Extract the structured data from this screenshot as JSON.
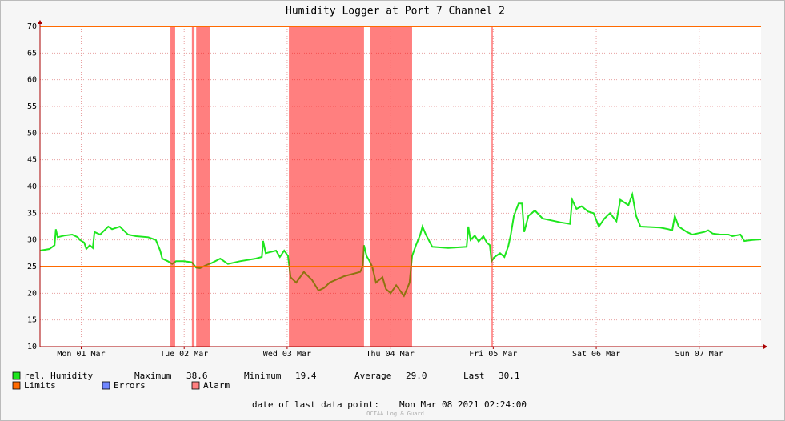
{
  "chart_data": {
    "type": "line",
    "title": "Humidity Logger at Port 7 Channel 2",
    "xlim": [
      2.4,
      170.4
    ],
    "xticks": [
      {
        "value": 12,
        "label": "Mon 01 Mar"
      },
      {
        "value": 36,
        "label": "Tue 02 Mar"
      },
      {
        "value": 60,
        "label": "Wed 03 Mar"
      },
      {
        "value": 84,
        "label": "Thu 04 Mar"
      },
      {
        "value": 108,
        "label": "Fri 05 Mar"
      },
      {
        "value": 132,
        "label": "Sat 06 Mar"
      },
      {
        "value": 156,
        "label": "Sun 07 Mar"
      }
    ],
    "ylim": [
      10,
      70
    ],
    "yticks": [
      10,
      15,
      20,
      25,
      30,
      35,
      40,
      45,
      50,
      55,
      60,
      65,
      70
    ],
    "grid": true,
    "series": [
      {
        "name": "rel. Humidity",
        "color": "#1ee61e",
        "x": [
          2.4,
          4.6,
          5.8,
          6.1,
          6.5,
          8.0,
          9.9,
          11.2,
          11.7,
          12.7,
          13.2,
          14.0,
          14.7,
          15.1,
          16.4,
          18.3,
          19.2,
          21.0,
          22.9,
          24.8,
          27.6,
          29.4,
          30.4,
          30.9,
          32.2,
          33.2,
          34.1,
          36.0,
          37.8,
          38.8,
          39.7,
          41.2,
          42.5,
          44.4,
          46.2,
          49.0,
          52.7,
          54.1,
          54.4,
          55.0,
          57.4,
          58.3,
          59.3,
          60.2,
          60.8,
          62.1,
          63.9,
          65.8,
          67.3,
          68.6,
          69.9,
          73.3,
          77.0,
          77.6,
          77.9,
          78.5,
          79.2,
          79.8,
          80.7,
          82.2,
          83.0,
          84.1,
          85.4,
          87.2,
          88.0,
          88.5,
          89.1,
          90.0,
          91.0,
          91.5,
          92.3,
          93.8,
          97.5,
          101.8,
          102.2,
          102.7,
          103.7,
          104.6,
          105.7,
          106.5,
          107.2,
          107.6,
          108.3,
          109.6,
          110.6,
          111.5,
          112.1,
          112.8,
          113.9,
          114.7,
          115.2,
          116.2,
          117.7,
          119.5,
          123.6,
          125.9,
          126.4,
          127.4,
          128.6,
          130.1,
          131.4,
          132.6,
          133.9,
          135.2,
          136.7,
          137.6,
          139.5,
          140.4,
          141.3,
          142.3,
          146.9,
          148.8,
          149.7,
          150.3,
          151.2,
          153.1,
          154.4,
          157.2,
          158.1,
          159.1,
          160.9,
          162.8,
          163.7,
          165.6,
          166.5,
          168.4,
          170.4
        ],
        "values": [
          28,
          28.3,
          29,
          32,
          30.5,
          30.8,
          31,
          30.5,
          30,
          29.5,
          28.3,
          29,
          28.5,
          31.5,
          31,
          32.5,
          32,
          32.5,
          31,
          30.7,
          30.5,
          30,
          28,
          26.5,
          26,
          25.5,
          26,
          26,
          25.8,
          24.8,
          24.7,
          25.3,
          25.7,
          26.5,
          25.5,
          26,
          26.5,
          26.8,
          29.8,
          27.5,
          28,
          26.8,
          28,
          27,
          23,
          22,
          24,
          22.5,
          20.5,
          21,
          22,
          23.2,
          24,
          25,
          29,
          27,
          26,
          25,
          22,
          23,
          20.8,
          20,
          21.5,
          19.5,
          21,
          22,
          27,
          29,
          31,
          32.5,
          31,
          28.7,
          28.5,
          28.7,
          32.5,
          30,
          30.8,
          29.7,
          30.7,
          29.5,
          29,
          26,
          26.8,
          27.5,
          26.8,
          28.8,
          31,
          34.5,
          36.8,
          36.8,
          31.5,
          34.5,
          35.5,
          34,
          33.3,
          33,
          37.5,
          35.8,
          36.3,
          35.3,
          35,
          32.5,
          34,
          35,
          33.5,
          37.5,
          36.5,
          38.5,
          34.5,
          32.5,
          32.3,
          32,
          31.8,
          34.5,
          32.5,
          31.5,
          31,
          31.5,
          31.8,
          31.2,
          31,
          31,
          30.7,
          31,
          29.8,
          30,
          30.1
        ]
      }
    ],
    "limits": {
      "name": "Limits",
      "color": "#ff6a00",
      "values": [
        25,
        70
      ]
    },
    "errors": {
      "name": "Errors",
      "color": "#6f86ff"
    },
    "alarm": {
      "name": "Alarm",
      "color": "#ff0000",
      "periods": [
        [
          32.8,
          33.9
        ],
        [
          37.8,
          38.4
        ],
        [
          38.8,
          42.1
        ],
        [
          60.4,
          77.9
        ],
        [
          79.4,
          89.1
        ],
        [
          107.6,
          107.9
        ]
      ]
    },
    "stats": [
      {
        "label": "Maximum",
        "value": "38.6"
      },
      {
        "label": "Minimum",
        "value": "19.4"
      },
      {
        "label": "Average",
        "value": "29.0"
      },
      {
        "label": "Last",
        "value": "30.1"
      }
    ],
    "footer": {
      "label": "date of last data point:",
      "value": "Mon Mar 08 2021 02:24:00"
    },
    "watermark": "OCTAA Log & Guard"
  }
}
